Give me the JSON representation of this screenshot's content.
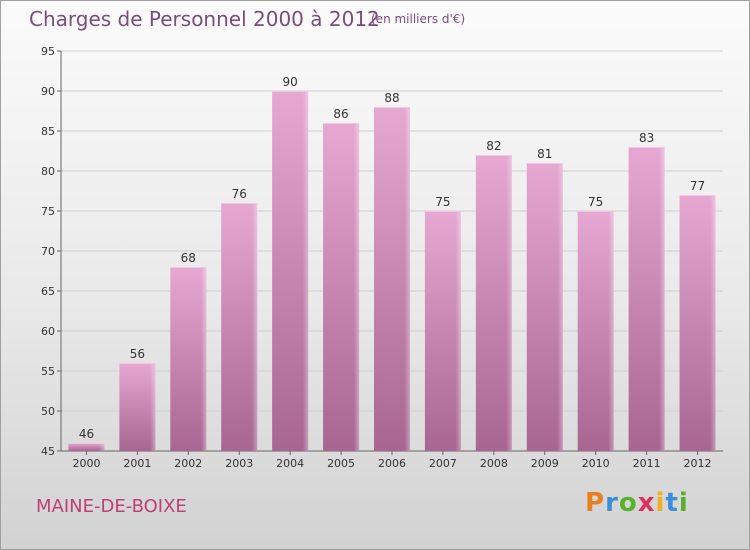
{
  "chart_data": {
    "type": "bar",
    "title": "Charges de Personnel 2000 à 2012",
    "subtitle": "(en milliers d'€)",
    "categories": [
      "2000",
      "2001",
      "2002",
      "2003",
      "2004",
      "2005",
      "2006",
      "2007",
      "2008",
      "2009",
      "2010",
      "2011",
      "2012"
    ],
    "values": [
      46,
      56,
      68,
      76,
      90,
      86,
      88,
      75,
      82,
      81,
      75,
      83,
      77
    ],
    "ylim": [
      45,
      95
    ],
    "yticks": [
      45,
      50,
      55,
      60,
      65,
      70,
      75,
      80,
      85,
      90,
      95
    ],
    "grid": true,
    "bar_color": "#c87fb0"
  },
  "commune": "MAINE-DE-BOIXE",
  "logo": {
    "text": "Proxiti",
    "letter_colors": [
      "#e8801f",
      "#3a8fd8",
      "#58b030",
      "#e03060",
      "#f0b020",
      "#3a8fd8",
      "#58b030"
    ]
  }
}
